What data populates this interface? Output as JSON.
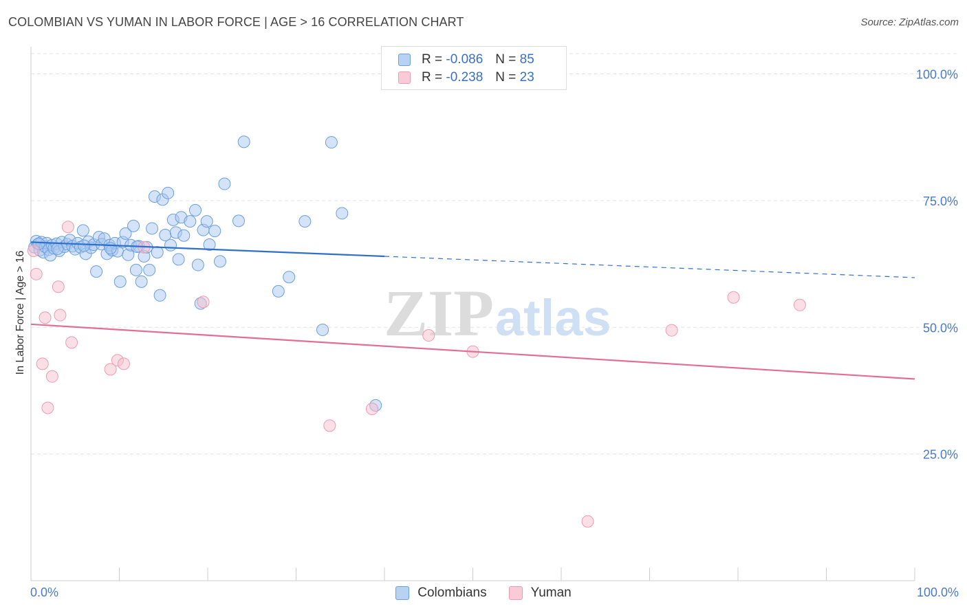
{
  "title": "COLOMBIAN VS YUMAN IN LABOR FORCE | AGE > 16 CORRELATION CHART",
  "source": "Source: ZipAtlas.com",
  "watermark": {
    "zip": "ZIP",
    "atlas": "atlas"
  },
  "legend": {
    "rows": [
      {
        "r_label": "R =",
        "r_value": "-0.086",
        "n_label": "N =",
        "n_value": "85"
      },
      {
        "r_label": "R =",
        "r_value": "-0.238",
        "n_label": "N =",
        "n_value": "23"
      }
    ]
  },
  "colors": {
    "colombians_fill": "#a9c8ef",
    "colombians_stroke": "#6a9fdc",
    "colombians_line": "#2f6fcc",
    "yuman_fill": "#f7bfd0",
    "yuman_stroke": "#ee9ab3",
    "yuman_line": "#e36d95",
    "grid": "#e3e3e3",
    "tick_text": "#4a7ac9"
  },
  "chart_data": {
    "type": "scatter",
    "title": "COLOMBIAN VS YUMAN IN LABOR FORCE | AGE > 16 CORRELATION CHART",
    "xlabel": "",
    "ylabel": "In Labor Force | Age > 16",
    "xlim": [
      0,
      100
    ],
    "ylim": [
      0,
      104
    ],
    "x_tick_labels": [
      "0.0%",
      "100.0%"
    ],
    "y_ticks": [
      25,
      50,
      75,
      100
    ],
    "y_tick_labels": [
      "25.0%",
      "50.0%",
      "75.0%",
      "100.0%"
    ],
    "series": [
      {
        "name": "Colombians",
        "r": -0.086,
        "n": 85,
        "trend": {
          "x_start": 0,
          "y_start": 66.8,
          "x_solid_end": 40,
          "y_solid_end": 64.0,
          "x_end": 100,
          "y_end": 59.8
        },
        "points": [
          [
            0.4,
            65.8
          ],
          [
            0.6,
            67.0
          ],
          [
            0.8,
            66.4
          ],
          [
            1.0,
            65.2
          ],
          [
            1.2,
            66.8
          ],
          [
            1.4,
            64.8
          ],
          [
            1.6,
            65.9
          ],
          [
            1.8,
            66.6
          ],
          [
            2.0,
            65.3
          ],
          [
            2.2,
            64.2
          ],
          [
            2.4,
            66.2
          ],
          [
            2.6,
            65.6
          ],
          [
            2.9,
            66.5
          ],
          [
            3.2,
            65.1
          ],
          [
            3.5,
            66.8
          ],
          [
            3.8,
            65.9
          ],
          [
            4.1,
            66.4
          ],
          [
            4.4,
            67.2
          ],
          [
            4.7,
            66.0
          ],
          [
            5.0,
            65.4
          ],
          [
            5.3,
            66.6
          ],
          [
            5.6,
            65.8
          ],
          [
            5.9,
            69.1
          ],
          [
            6.2,
            64.5
          ],
          [
            6.5,
            66.9
          ],
          [
            6.8,
            65.7
          ],
          [
            7.1,
            66.3
          ],
          [
            7.4,
            61.0
          ],
          [
            7.7,
            67.8
          ],
          [
            8.0,
            66.4
          ],
          [
            8.3,
            67.5
          ],
          [
            8.6,
            64.5
          ],
          [
            8.9,
            66.2
          ],
          [
            9.2,
            65.2
          ],
          [
            9.5,
            66.6
          ],
          [
            9.8,
            65.0
          ],
          [
            10.1,
            59.0
          ],
          [
            10.4,
            66.8
          ],
          [
            10.7,
            68.5
          ],
          [
            11.0,
            64.3
          ],
          [
            11.3,
            66.2
          ],
          [
            11.6,
            70.0
          ],
          [
            11.9,
            61.3
          ],
          [
            12.2,
            66.0
          ],
          [
            12.5,
            59.0
          ],
          [
            12.8,
            64.0
          ],
          [
            13.1,
            65.8
          ],
          [
            13.4,
            61.3
          ],
          [
            13.7,
            69.5
          ],
          [
            14.0,
            75.8
          ],
          [
            14.3,
            64.8
          ],
          [
            14.6,
            56.3
          ],
          [
            14.9,
            75.2
          ],
          [
            15.2,
            68.2
          ],
          [
            15.5,
            76.5
          ],
          [
            15.8,
            66.2
          ],
          [
            16.1,
            71.2
          ],
          [
            16.4,
            68.7
          ],
          [
            16.7,
            63.4
          ],
          [
            17.0,
            71.7
          ],
          [
            17.3,
            68.1
          ],
          [
            18.0,
            70.9
          ],
          [
            18.6,
            73.1
          ],
          [
            18.9,
            62.3
          ],
          [
            19.2,
            54.7
          ],
          [
            19.5,
            69.2
          ],
          [
            19.9,
            70.9
          ],
          [
            20.2,
            66.3
          ],
          [
            20.8,
            69.0
          ],
          [
            21.4,
            63.0
          ],
          [
            21.9,
            78.3
          ],
          [
            23.5,
            71.0
          ],
          [
            24.1,
            86.6
          ],
          [
            28.0,
            57.1
          ],
          [
            29.2,
            59.9
          ],
          [
            31.0,
            70.9
          ],
          [
            33.0,
            49.5
          ],
          [
            34.0,
            86.5
          ],
          [
            35.2,
            72.5
          ],
          [
            39.0,
            34.6
          ],
          [
            0.9,
            66.5
          ],
          [
            3.0,
            65.5
          ],
          [
            6.0,
            66.1
          ],
          [
            9.0,
            65.6
          ],
          [
            12.0,
            65.9
          ]
        ]
      },
      {
        "name": "Yuman",
        "r": -0.238,
        "n": 23,
        "trend": {
          "x_start": 0,
          "y_start": 50.6,
          "x_end": 100,
          "y_end": 39.8
        },
        "points": [
          [
            0.3,
            65.1
          ],
          [
            0.6,
            60.5
          ],
          [
            1.3,
            42.8
          ],
          [
            1.6,
            51.9
          ],
          [
            1.9,
            34.1
          ],
          [
            2.4,
            40.3
          ],
          [
            3.1,
            58.0
          ],
          [
            3.3,
            52.4
          ],
          [
            4.2,
            69.8
          ],
          [
            4.6,
            47.0
          ],
          [
            9.0,
            41.7
          ],
          [
            9.8,
            43.5
          ],
          [
            10.5,
            42.8
          ],
          [
            12.8,
            65.8
          ],
          [
            19.5,
            55.0
          ],
          [
            33.8,
            30.6
          ],
          [
            38.6,
            33.9
          ],
          [
            45.0,
            48.4
          ],
          [
            50.0,
            45.2
          ],
          [
            63.0,
            11.7
          ],
          [
            72.5,
            49.4
          ],
          [
            79.5,
            55.9
          ],
          [
            87.0,
            54.4
          ]
        ]
      }
    ],
    "legend_labels": [
      "Colombians",
      "Yuman"
    ]
  }
}
